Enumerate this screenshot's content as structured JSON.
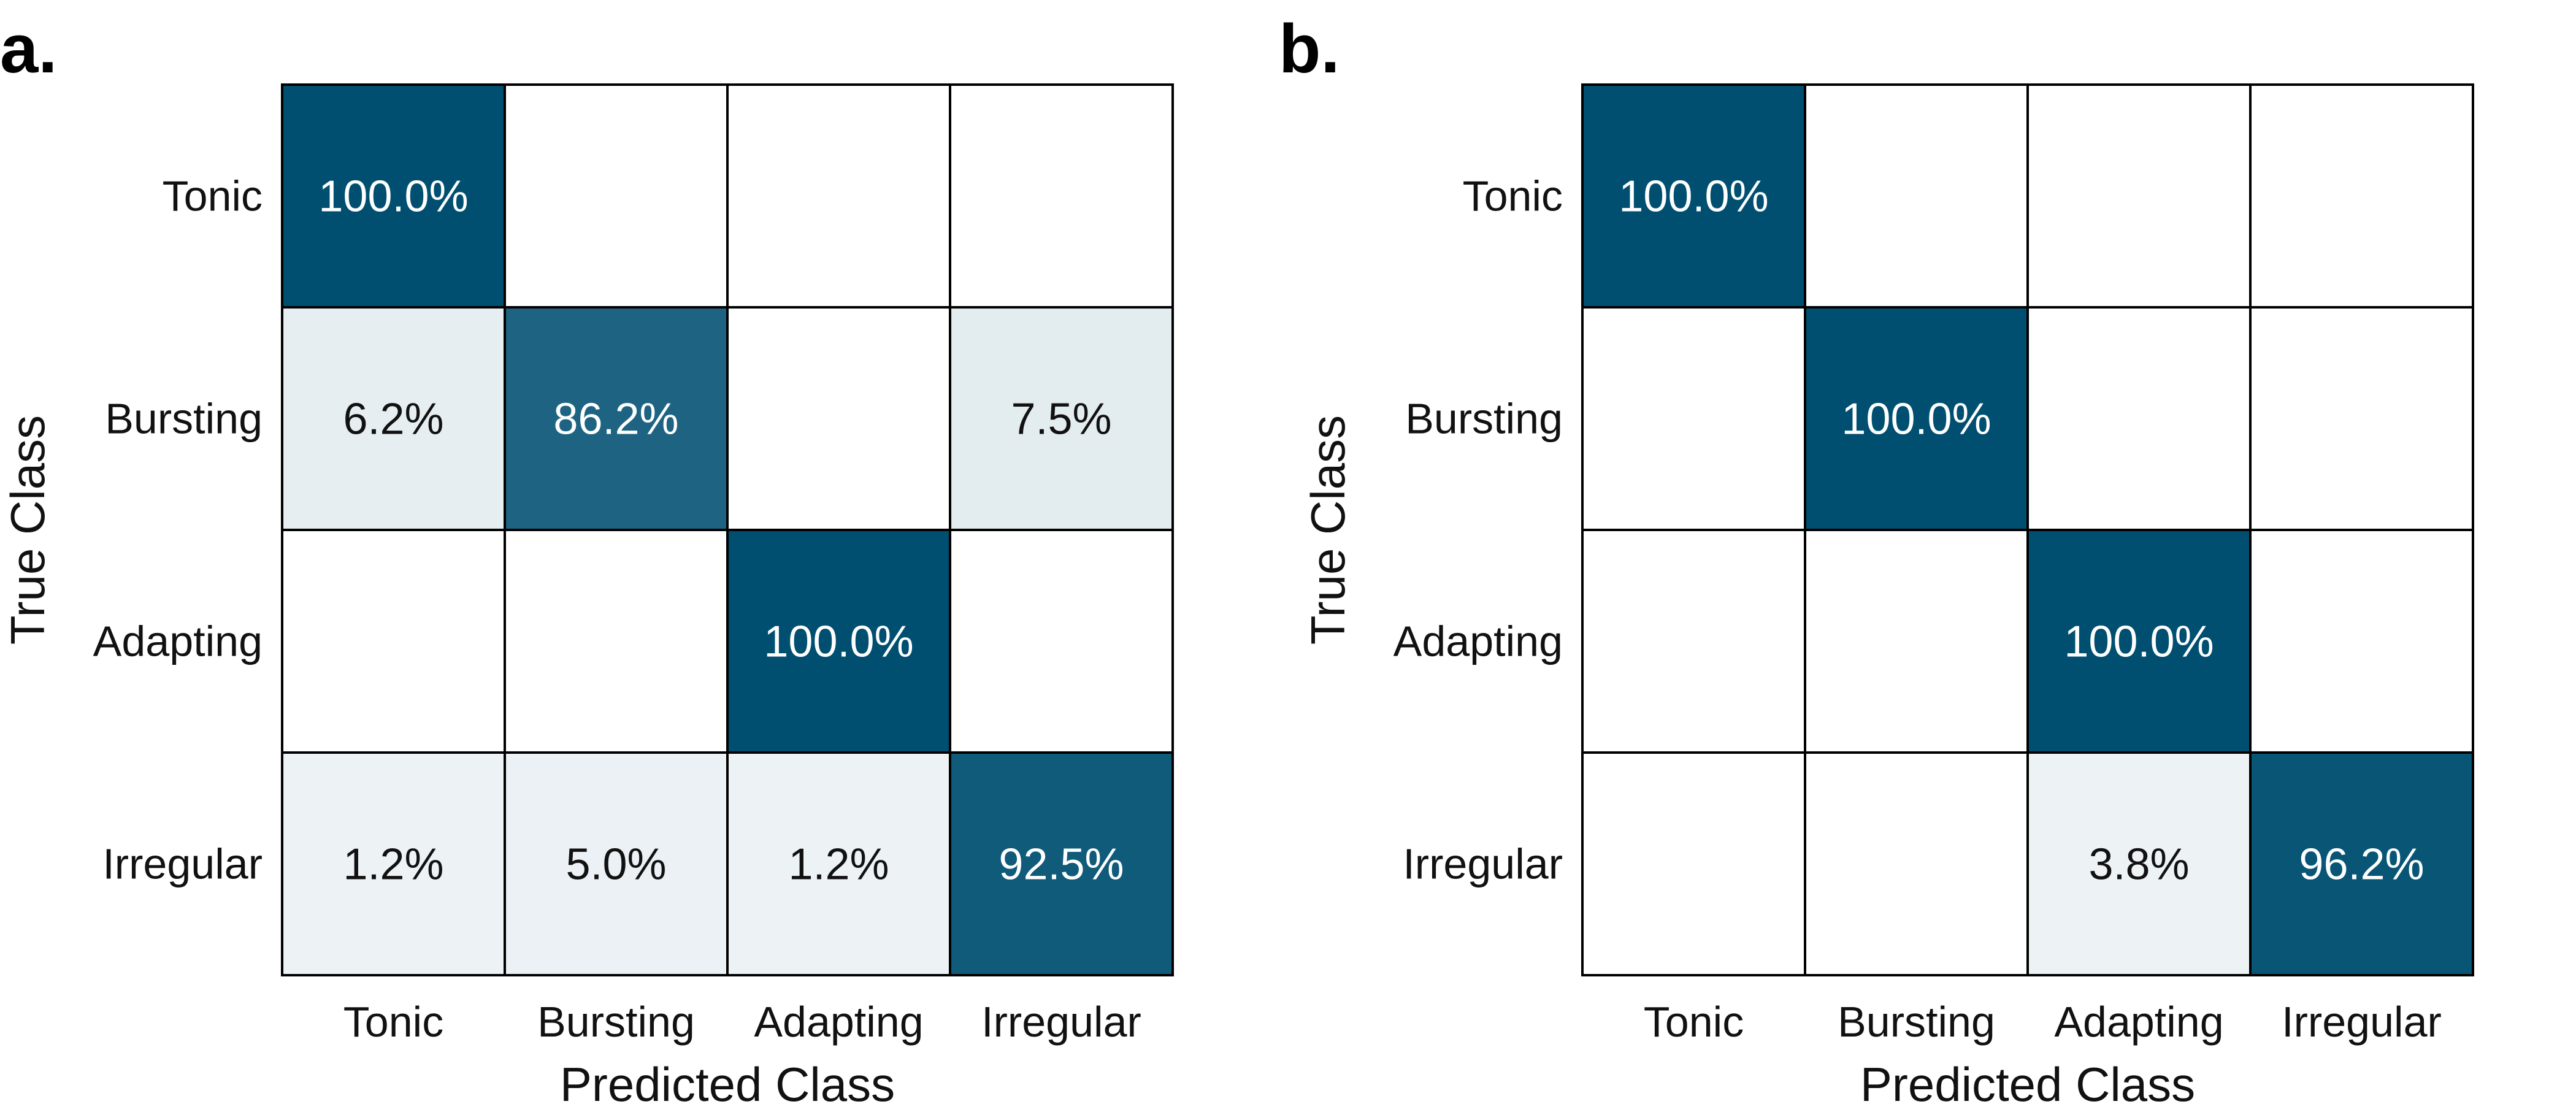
{
  "chart_data": [
    {
      "type": "heatmap",
      "panel_label": "a.",
      "rows": [
        "Tonic",
        "Bursting",
        "Adapting",
        "Irregular"
      ],
      "cols": [
        "Tonic",
        "Bursting",
        "Adapting",
        "Irregular"
      ],
      "xlabel": "Predicted Class",
      "ylabel": "True Class",
      "values": [
        [
          100.0,
          null,
          null,
          null
        ],
        [
          6.2,
          86.2,
          null,
          7.5
        ],
        [
          null,
          null,
          100.0,
          null
        ],
        [
          1.2,
          5.0,
          1.2,
          92.5
        ]
      ],
      "labels": [
        [
          "100.0%",
          "",
          "",
          ""
        ],
        [
          "6.2%",
          "86.2%",
          "",
          "7.5%"
        ],
        [
          "",
          "",
          "100.0%",
          ""
        ],
        [
          "1.2%",
          "5.0%",
          "1.2%",
          "92.5%"
        ]
      ]
    },
    {
      "type": "heatmap",
      "panel_label": "b.",
      "rows": [
        "Tonic",
        "Bursting",
        "Adapting",
        "Irregular"
      ],
      "cols": [
        "Tonic",
        "Bursting",
        "Adapting",
        "Irregular"
      ],
      "xlabel": "Predicted Class",
      "ylabel": "True Class",
      "values": [
        [
          100.0,
          null,
          null,
          null
        ],
        [
          null,
          100.0,
          null,
          null
        ],
        [
          null,
          null,
          100.0,
          null
        ],
        [
          null,
          null,
          3.8,
          96.2
        ]
      ],
      "labels": [
        [
          "100.0%",
          "",
          "",
          ""
        ],
        [
          "",
          "100.0%",
          "",
          ""
        ],
        [
          "",
          "",
          "100.0%",
          ""
        ],
        [
          "",
          "",
          "3.8%",
          "96.2%"
        ]
      ]
    }
  ],
  "colors": {
    "high": "#004f71",
    "empty": "#ffffff",
    "light_text": "#ffffff",
    "dark_text": "#111111"
  }
}
